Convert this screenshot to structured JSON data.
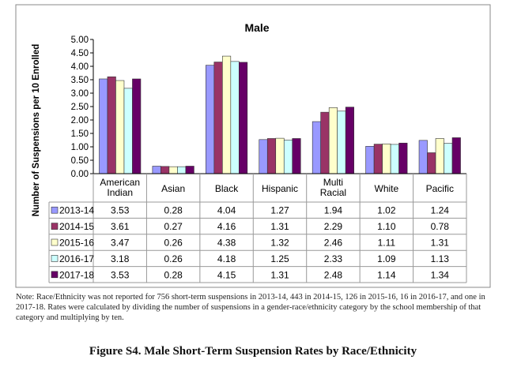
{
  "chart_data": {
    "type": "bar",
    "title": "Male",
    "ylabel": "Number of Suspensions per 10 Enrolled",
    "ylim": [
      0,
      5
    ],
    "yticks": [
      "0.00",
      "0.50",
      "1.00",
      "1.50",
      "2.00",
      "2.50",
      "3.00",
      "3.50",
      "4.00",
      "4.50",
      "5.00"
    ],
    "categories": [
      [
        "American",
        "Indian"
      ],
      [
        "Asian"
      ],
      [
        "Black"
      ],
      [
        "Hispanic"
      ],
      [
        "Multi",
        "Racial"
      ],
      [
        "White"
      ],
      [
        "Pacific"
      ]
    ],
    "series": [
      {
        "name": "2013-14",
        "color": "#9999ff",
        "values": [
          3.53,
          0.28,
          4.04,
          1.27,
          1.94,
          1.02,
          1.24
        ]
      },
      {
        "name": "2014-15",
        "color": "#993366",
        "values": [
          3.61,
          0.27,
          4.16,
          1.31,
          2.29,
          1.1,
          0.78
        ]
      },
      {
        "name": "2015-16",
        "color": "#ffffcc",
        "values": [
          3.47,
          0.26,
          4.38,
          1.32,
          2.46,
          1.11,
          1.31
        ]
      },
      {
        "name": "2016-17",
        "color": "#ccffff",
        "values": [
          3.18,
          0.26,
          4.18,
          1.25,
          2.33,
          1.09,
          1.13
        ]
      },
      {
        "name": "2017-18",
        "color": "#660066",
        "values": [
          3.53,
          0.28,
          4.15,
          1.31,
          2.48,
          1.14,
          1.34
        ]
      }
    ],
    "grid": false,
    "legend": "data-table"
  },
  "note": "Note:  Race/Ethnicity was not reported for 756 short-term suspensions in 2013-14, 443 in 2014-15, 126 in 2015-16, 16 in 2016-17, and one in 2017-18.  Rates were calculated by dividing the number of suspensions in a gender-race/ethnicity category by the school membership of that category and multiplying by ten.",
  "figure_caption": "Figure S4.  Male Short-Term Suspension Rates by Race/Ethnicity"
}
